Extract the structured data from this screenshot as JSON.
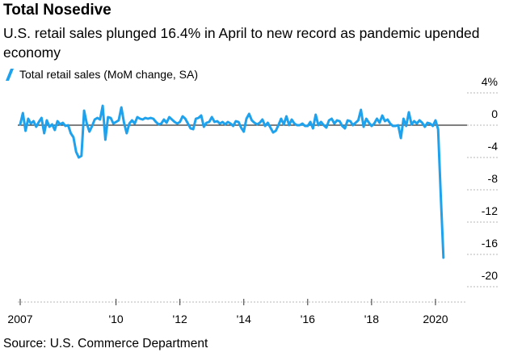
{
  "header": {
    "title": "Total Nosedive",
    "subtitle": "U.S. retail sales plunged 16.4% in April to new record as pandemic upended economy"
  },
  "legend": {
    "label": "Total retail sales (MoM change, SA)"
  },
  "footer": {
    "source": "Source: U.S. Commerce Department"
  },
  "colors": {
    "series": "#1fa2ee",
    "axis": "#333333",
    "grid": "#b7b7b7"
  },
  "chart_data": {
    "type": "line",
    "title": "Total Nosedive",
    "subtitle": "U.S. retail sales plunged 16.4% in April to new record as pandemic upended economy",
    "xlabel": "",
    "ylabel": "",
    "xlim": [
      2007.0,
      2020.33
    ],
    "ylim": [
      -22,
      4
    ],
    "y_ticks": [
      4,
      0,
      -4,
      -8,
      -12,
      -16,
      -20
    ],
    "y_tick_labels": [
      "4%",
      "0",
      "-4",
      "-8",
      "-12",
      "-16",
      "-20"
    ],
    "x_ticks": [
      2007,
      2010,
      2012,
      2014,
      2016,
      2018,
      2020
    ],
    "x_tick_labels": [
      "2007",
      "'10",
      "'12",
      "'14",
      "'16",
      "'18",
      "2020"
    ],
    "grid": false,
    "legend_position": "top-left",
    "series": [
      {
        "name": "Total retail sales (MoM change, SA)",
        "start": "2007-01",
        "frequency": "monthly",
        "values": [
          0.1,
          1.5,
          -0.7,
          0.8,
          0.2,
          0.5,
          -0.2,
          0.4,
          0.9,
          -1.0,
          0.6,
          -0.2,
          0.1,
          -0.6,
          0.5,
          0.1,
          0.3,
          -0.1,
          0.0,
          -1.0,
          -1.5,
          -3.3,
          -4.0,
          -3.8,
          1.8,
          0.2,
          -0.8,
          -0.1,
          0.7,
          0.9,
          0.7,
          2.4,
          -1.8,
          1.0,
          0.9,
          0.2,
          0.4,
          0.6,
          2.2,
          0.3,
          -1.0,
          0.2,
          0.6,
          0.2,
          1.0,
          0.8,
          0.7,
          0.9,
          0.8,
          0.9,
          0.8,
          0.4,
          0.1,
          0.2,
          0.7,
          0.3,
          1.0,
          0.7,
          0.4,
          0.2,
          0.4,
          1.1,
          0.8,
          0.2,
          -0.4,
          -0.5,
          0.8,
          0.9,
          1.2,
          -0.2,
          0.3,
          0.4,
          1.0,
          0.4,
          0.5,
          0.2,
          0.4,
          0.1,
          0.4,
          0.2,
          -0.1,
          0.5,
          0.4,
          -0.3,
          -0.8,
          0.8,
          1.4,
          0.6,
          0.3,
          0.1,
          0.3,
          0.7,
          -0.1,
          0.3,
          -0.3,
          -0.9,
          -0.7,
          0.0,
          0.8,
          0.1,
          1.1,
          0.0,
          0.7,
          0.2,
          0.0,
          0.0,
          0.2,
          -0.1,
          -0.1,
          0.4,
          -0.4,
          1.3,
          0.0,
          0.4,
          0.0,
          -0.3,
          0.6,
          0.8,
          0.2,
          0.6,
          0.5,
          -0.1,
          -0.4,
          0.6,
          0.5,
          0.0,
          0.3,
          0.6,
          1.9,
          -0.2,
          0.8,
          0.3,
          -0.1,
          0.2,
          0.8,
          0.3,
          1.2,
          0.5,
          0.7,
          0.2,
          -0.1,
          -0.1,
          0.0,
          -1.6,
          0.8,
          -0.1,
          1.6,
          0.1,
          0.5,
          0.2,
          0.6,
          0.3,
          -0.2,
          0.3,
          0.2,
          -0.1,
          0.6,
          -0.5,
          -8.7,
          -16.4
        ]
      }
    ],
    "annotations": []
  }
}
